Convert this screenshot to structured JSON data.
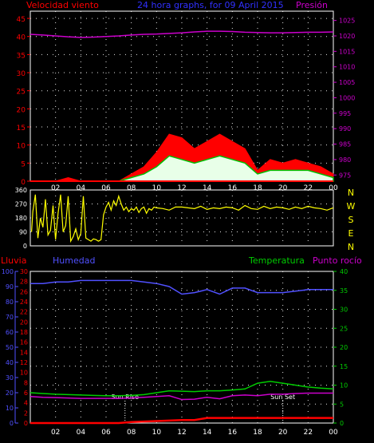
{
  "header": {
    "left_label": "Velocidad viento",
    "title": "24 hora graphs, for 09 April 2015",
    "right_label": "Presión"
  },
  "x_ticks": [
    "02",
    "04",
    "06",
    "08",
    "10",
    "12",
    "14",
    "16",
    "18",
    "20",
    "22",
    "00"
  ],
  "colors": {
    "wind": "#ff0000",
    "gust": "#00c000",
    "wind_light": "#e8ffe8",
    "pressure": "#cc00cc",
    "direction": "#ffff00",
    "rain": "#ff0000",
    "humidity": "#5050ff",
    "temperature": "#00cc00",
    "dewpoint": "#cc00cc",
    "grid": "#ffffff",
    "axis_box": "#ffffff"
  },
  "chart_data": [
    {
      "type": "area",
      "id": "wind-pressure",
      "left_axis": {
        "label": "Velocidad viento",
        "ticks": [
          0,
          5,
          10,
          15,
          20,
          25,
          30,
          35,
          40,
          45
        ],
        "ylim": [
          0,
          47
        ]
      },
      "right_axis": {
        "label": "Presión",
        "ticks": [
          975,
          980,
          985,
          990,
          995,
          1000,
          1005,
          1010,
          1015,
          1020,
          1025
        ],
        "ylim": [
          973,
          1028
        ]
      },
      "x_hours": [
        0,
        1,
        2,
        3,
        4,
        5,
        6,
        7,
        8,
        9,
        10,
        11,
        12,
        13,
        14,
        15,
        16,
        17,
        18,
        19,
        20,
        21,
        22,
        23,
        24
      ],
      "series": [
        {
          "name": "Velocidad viento",
          "kind": "gust",
          "values": [
            0,
            0,
            0,
            1,
            0,
            0,
            0,
            0,
            2,
            4,
            8,
            13,
            12,
            9,
            11,
            13,
            11,
            9,
            3,
            6,
            5,
            6,
            5,
            4,
            2
          ]
        },
        {
          "name": "wind_avg",
          "kind": "avg",
          "values": [
            0,
            0,
            0,
            0,
            0,
            0,
            0,
            0,
            1,
            2,
            4,
            7,
            6,
            5,
            6,
            7,
            6,
            5,
            2,
            3,
            3,
            3,
            3,
            2,
            1
          ]
        },
        {
          "name": "Presión",
          "kind": "pressure",
          "values": [
            1020.5,
            1020.3,
            1020.0,
            1019.7,
            1019.5,
            1019.6,
            1019.8,
            1020.0,
            1020.3,
            1020.5,
            1020.6,
            1020.8,
            1021.0,
            1021.3,
            1021.5,
            1021.5,
            1021.4,
            1021.2,
            1021.1,
            1021.0,
            1021.0,
            1021.1,
            1021.2,
            1021.2,
            1021.3
          ]
        }
      ]
    },
    {
      "type": "scatter",
      "id": "wind-direction",
      "left_axis": {
        "ticks": [
          0,
          90,
          180,
          270,
          360
        ],
        "ylim": [
          0,
          360
        ]
      },
      "right_axis": {
        "labels": [
          "N",
          "W",
          "S",
          "E",
          "N"
        ]
      },
      "series": [
        {
          "name": "direction",
          "x": [
            0.1,
            0.2,
            0.4,
            0.6,
            0.8,
            1.0,
            1.2,
            1.4,
            1.6,
            1.8,
            2.0,
            2.2,
            2.4,
            2.6,
            2.8,
            3.0,
            3.2,
            3.4,
            3.6,
            3.8,
            4.0,
            4.2,
            4.4,
            4.6,
            4.8,
            5.0,
            5.2,
            5.4,
            5.6,
            5.8,
            6.0,
            6.2,
            6.4,
            6.6,
            6.8,
            7.0,
            7.2,
            7.4,
            7.6,
            7.8,
            8.0,
            8.2,
            8.4,
            8.6,
            8.8,
            9.0,
            9.2,
            9.4,
            9.6,
            9.8,
            10.0,
            10.5,
            11.0,
            11.5,
            12.0,
            12.5,
            13.0,
            13.5,
            14.0,
            14.5,
            15.0,
            15.5,
            16.0,
            16.5,
            17.0,
            17.5,
            18.0,
            18.5,
            19.0,
            19.5,
            20.0,
            20.5,
            21.0,
            21.5,
            22.0,
            22.5,
            23.0,
            23.5,
            24.0
          ],
          "values": [
            90,
            220,
            330,
            50,
            180,
            120,
            300,
            70,
            100,
            260,
            40,
            210,
            330,
            90,
            130,
            320,
            30,
            60,
            110,
            40,
            80,
            320,
            50,
            40,
            30,
            45,
            40,
            30,
            40,
            200,
            250,
            280,
            230,
            290,
            260,
            320,
            270,
            230,
            250,
            220,
            240,
            230,
            250,
            215,
            240,
            250,
            210,
            240,
            230,
            250,
            245,
            240,
            230,
            250,
            250,
            245,
            240,
            255,
            235,
            245,
            240,
            250,
            245,
            230,
            260,
            240,
            235,
            255,
            240,
            250,
            245,
            235,
            250,
            240,
            255,
            245,
            240,
            230,
            245
          ]
        }
      ]
    },
    {
      "type": "line",
      "id": "rain-humidity-temp",
      "left_labels": {
        "rain": "Lluvia",
        "humidity": "Humedad"
      },
      "right_labels": {
        "temperature": "Temperatura",
        "dewpoint": "Punto rocío"
      },
      "humidity_axis": {
        "ticks": [
          0,
          10,
          20,
          30,
          40,
          50,
          60,
          70,
          80,
          90,
          100
        ],
        "ylim": [
          0,
          100
        ]
      },
      "rain_axis": {
        "ticks": [
          0,
          2,
          4,
          6,
          8,
          10,
          12,
          14,
          16,
          18,
          20,
          22,
          24,
          26,
          28,
          30
        ],
        "ylim": [
          0,
          30
        ]
      },
      "temp_axis": {
        "ticks": [
          0,
          5,
          10,
          15,
          20,
          25,
          30,
          35,
          40
        ],
        "ylim": [
          0,
          40
        ]
      },
      "annotations": [
        "Sun Rise",
        "Sun Set"
      ],
      "annotation_hours": [
        7.5,
        20.0
      ],
      "x_hours": [
        0,
        1,
        2,
        3,
        4,
        5,
        6,
        7,
        8,
        9,
        10,
        11,
        12,
        13,
        14,
        15,
        16,
        17,
        18,
        19,
        20,
        21,
        22,
        23,
        24
      ],
      "series": [
        {
          "name": "Humedad",
          "values": [
            92,
            92,
            93,
            93,
            94,
            94,
            94,
            94,
            94,
            93,
            92,
            90,
            85,
            86,
            88,
            85,
            89,
            89,
            86,
            86,
            86,
            87,
            88,
            88,
            88
          ]
        },
        {
          "name": "Lluvia",
          "values": [
            0,
            0,
            0,
            0,
            0,
            0,
            0,
            0,
            0.2,
            0.3,
            0.4,
            0.5,
            0.6,
            0.6,
            1.0,
            1.0,
            1.0,
            1.0,
            1.0,
            1.0,
            1.0,
            1.0,
            1.0,
            1.0,
            1.0
          ]
        },
        {
          "name": "Temperatura",
          "values": [
            8.0,
            7.8,
            7.6,
            7.5,
            7.4,
            7.3,
            7.2,
            7.2,
            7.3,
            7.5,
            8.0,
            8.5,
            8.4,
            8.3,
            8.5,
            8.5,
            8.7,
            9.0,
            10.5,
            11.0,
            10.5,
            10.0,
            9.5,
            9.2,
            9.0
          ]
        },
        {
          "name": "Punto rocío",
          "values": [
            7.0,
            6.8,
            6.7,
            6.6,
            6.5,
            6.5,
            6.5,
            6.5,
            6.6,
            6.8,
            7.0,
            7.2,
            6.2,
            6.3,
            6.8,
            6.4,
            7.2,
            7.4,
            7.2,
            7.6,
            7.6,
            7.8,
            7.9,
            7.9,
            7.9
          ]
        }
      ]
    }
  ]
}
